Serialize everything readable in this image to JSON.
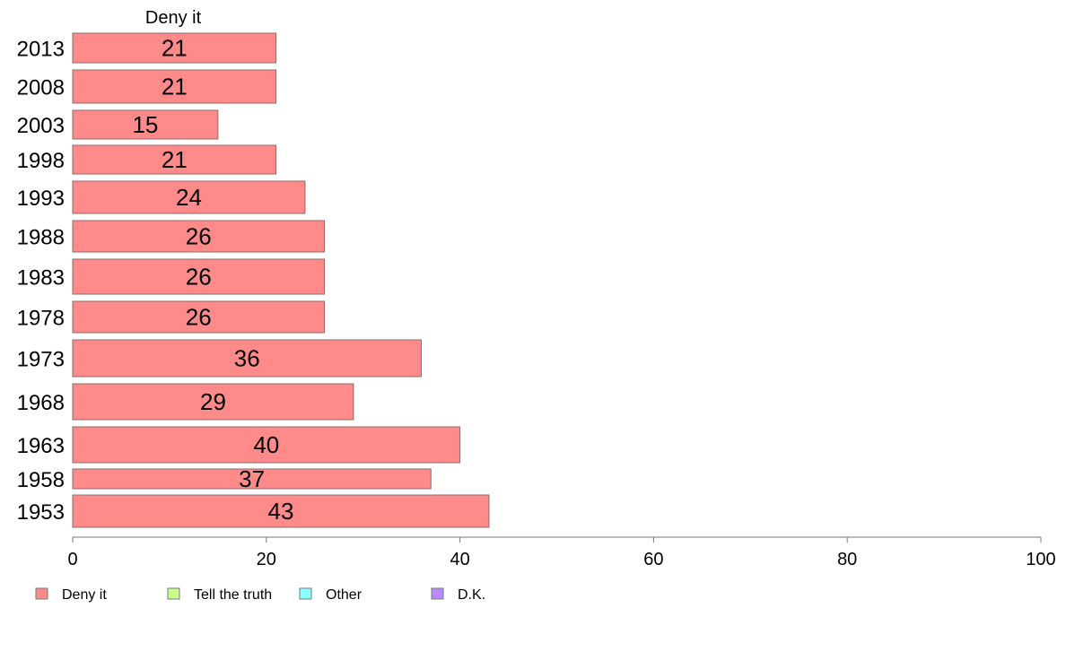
{
  "chart_data": {
    "type": "bar",
    "orientation": "horizontal",
    "title": "Deny it",
    "categories": [
      "2013",
      "2008",
      "2003",
      "1998",
      "1993",
      "1988",
      "1983",
      "1978",
      "1973",
      "1968",
      "1963",
      "1958",
      "1953"
    ],
    "series": [
      {
        "name": "Deny it",
        "values": [
          21,
          21,
          15,
          21,
          24,
          26,
          26,
          26,
          36,
          29,
          40,
          37,
          43
        ]
      }
    ],
    "xlim": [
      0,
      100
    ],
    "xticks": [
      "0",
      "20",
      "40",
      "60",
      "80",
      "100"
    ],
    "grid": false,
    "legend_position": "bottom-left",
    "legend": [
      {
        "label": "Deny it",
        "color": "#ff8a8a"
      },
      {
        "label": "Tell the truth",
        "color": "#c8ff8a"
      },
      {
        "label": "Other",
        "color": "#8affff"
      },
      {
        "label": "D.K.",
        "color": "#b98aff"
      }
    ],
    "bar_color": "#ff8a8a"
  }
}
